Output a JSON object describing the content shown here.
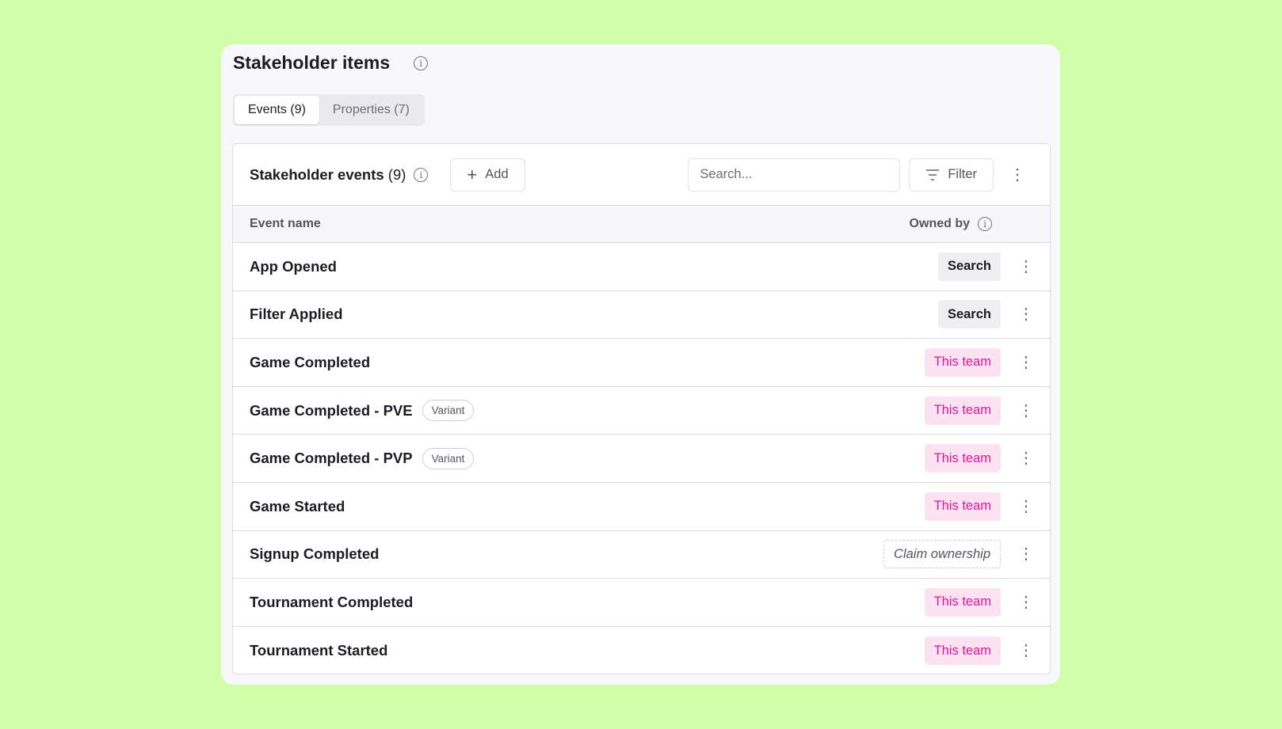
{
  "title": "Stakeholder items",
  "tabs": [
    {
      "label": "Events (9)",
      "active": true
    },
    {
      "label": "Properties (7)",
      "active": false
    }
  ],
  "panel": {
    "title": "Stakeholder events",
    "count": "(9)",
    "add_label": "Add",
    "search_placeholder": "Search...",
    "filter_label": "Filter"
  },
  "columns": {
    "name": "Event name",
    "owner": "Owned by"
  },
  "rows": [
    {
      "name": "App Opened",
      "owner": "Search",
      "type": "search"
    },
    {
      "name": "Filter Applied",
      "owner": "Search",
      "type": "search"
    },
    {
      "name": "Game Completed",
      "owner": "This team",
      "type": "team"
    },
    {
      "name": "Game Completed - PVE",
      "variant": "Variant",
      "owner": "This team",
      "type": "team"
    },
    {
      "name": "Game Completed - PVP",
      "variant": "Variant",
      "owner": "This team",
      "type": "team"
    },
    {
      "name": "Game Started",
      "owner": "This team",
      "type": "team"
    },
    {
      "name": "Signup Completed",
      "owner": "Claim ownership",
      "type": "claim"
    },
    {
      "name": "Tournament Completed",
      "owner": "This team",
      "type": "team"
    },
    {
      "name": "Tournament Started",
      "owner": "This team",
      "type": "team"
    }
  ],
  "colors": {
    "background": "#d1fea8",
    "team_text": "#e3159a",
    "team_bg": "#fde3f2"
  }
}
